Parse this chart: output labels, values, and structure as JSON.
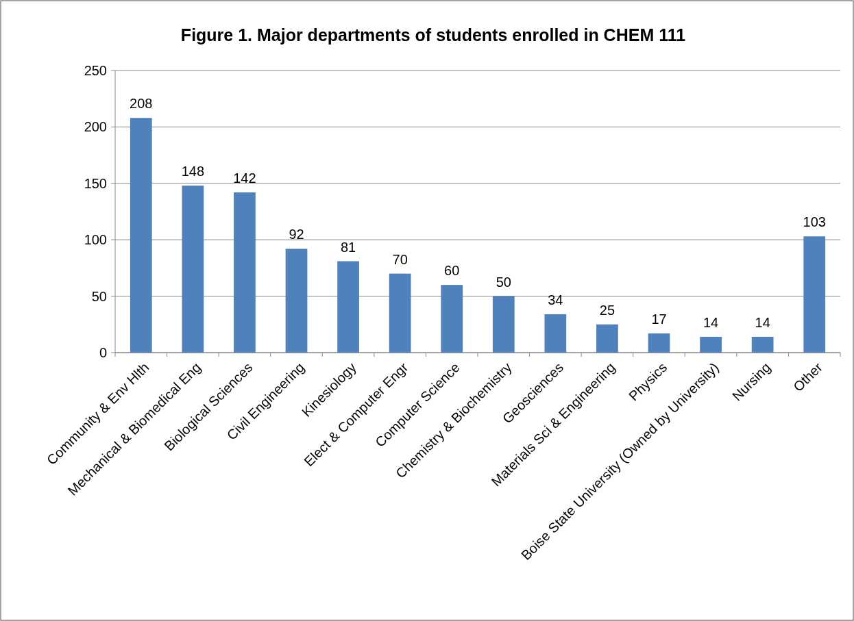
{
  "chart_data": {
    "type": "bar",
    "title": "Figure 1. Major departments of students enrolled in CHEM 111",
    "categories": [
      "Community & Env Hlth",
      "Mechanical & Biomedical Eng",
      "Biological Sciences",
      "Civil Engineering",
      "Kinesiology",
      "Elect & Computer Engr",
      "Computer Science",
      "Chemistry & Biochemistry",
      "Geosciences",
      "Materials Sci & Engineering",
      "Physics",
      "Boise State University (Owned by University)",
      "Nursing",
      "Other"
    ],
    "values": [
      208,
      148,
      142,
      92,
      81,
      70,
      60,
      50,
      34,
      25,
      17,
      14,
      14,
      103
    ],
    "color": "#4f81bd",
    "ylim": [
      0,
      250
    ],
    "yticks": [
      0,
      50,
      100,
      150,
      200,
      250
    ],
    "grid": "y",
    "data_labels": true
  }
}
